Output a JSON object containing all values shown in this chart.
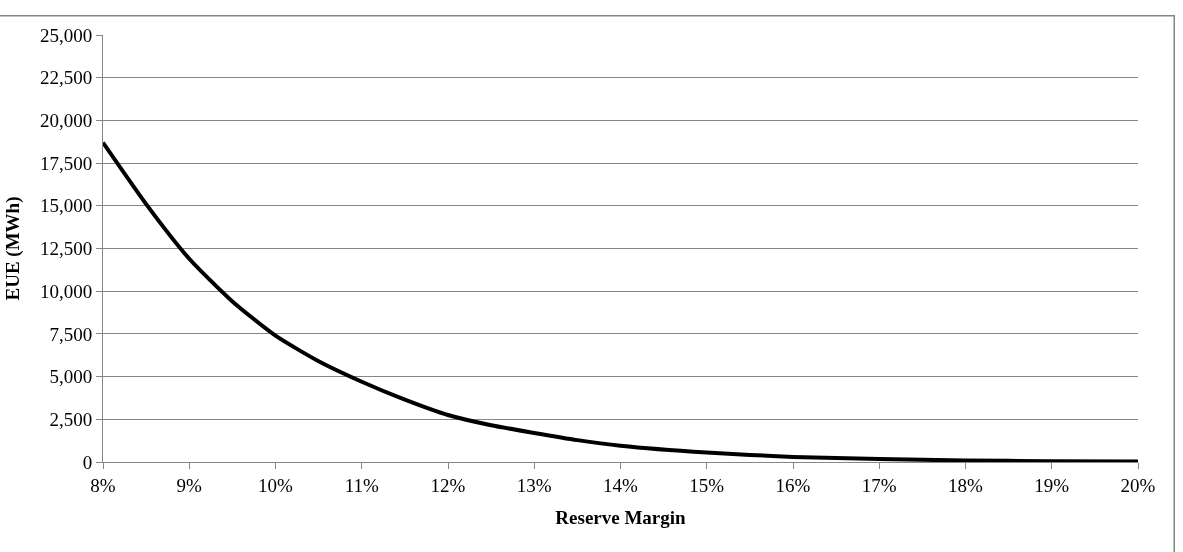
{
  "chart_data": {
    "type": "line",
    "xlabel": "Reserve Margin",
    "ylabel": "EUE (MWh)",
    "x": [
      8,
      8.5,
      9,
      9.5,
      10,
      10.5,
      11,
      11.5,
      12,
      12.5,
      13,
      13.5,
      14,
      15,
      16,
      17,
      18,
      19,
      20
    ],
    "series": [
      {
        "color": "#000000",
        "values": [
          18700,
          15100,
          11900,
          9400,
          7400,
          5900,
          4700,
          3650,
          2750,
          2150,
          1700,
          1280,
          950,
          550,
          300,
          170,
          90,
          50,
          30
        ]
      }
    ],
    "xlim": [
      8,
      20
    ],
    "xticks": [
      {
        "value": 8,
        "label": "8%"
      },
      {
        "value": 9,
        "label": "9%"
      },
      {
        "value": 10,
        "label": "10%"
      },
      {
        "value": 11,
        "label": "11%"
      },
      {
        "value": 12,
        "label": "12%"
      },
      {
        "value": 13,
        "label": "13%"
      },
      {
        "value": 14,
        "label": "14%"
      },
      {
        "value": 15,
        "label": "15%"
      },
      {
        "value": 16,
        "label": "16%"
      },
      {
        "value": 17,
        "label": "17%"
      },
      {
        "value": 18,
        "label": "18%"
      },
      {
        "value": 19,
        "label": "19%"
      },
      {
        "value": 20,
        "label": "20%"
      }
    ],
    "ylim": [
      0,
      25000
    ],
    "yticks": [
      0,
      {
        "value": 2500,
        "label": "2,500"
      },
      {
        "value": 5000,
        "label": "5,000"
      },
      {
        "value": 7500,
        "label": "7,500"
      },
      {
        "value": 10000,
        "label": "10,000"
      },
      {
        "value": 12500,
        "label": "12,500"
      },
      {
        "value": 15000,
        "label": "15,000"
      },
      {
        "value": 17500,
        "label": "17,500"
      },
      {
        "value": 20000,
        "label": "20,000"
      },
      {
        "value": 22500,
        "label": "22,500"
      },
      {
        "value": 25000,
        "label": "25,000"
      }
    ],
    "grid": "y",
    "marker": "none",
    "line_style": "solid"
  }
}
